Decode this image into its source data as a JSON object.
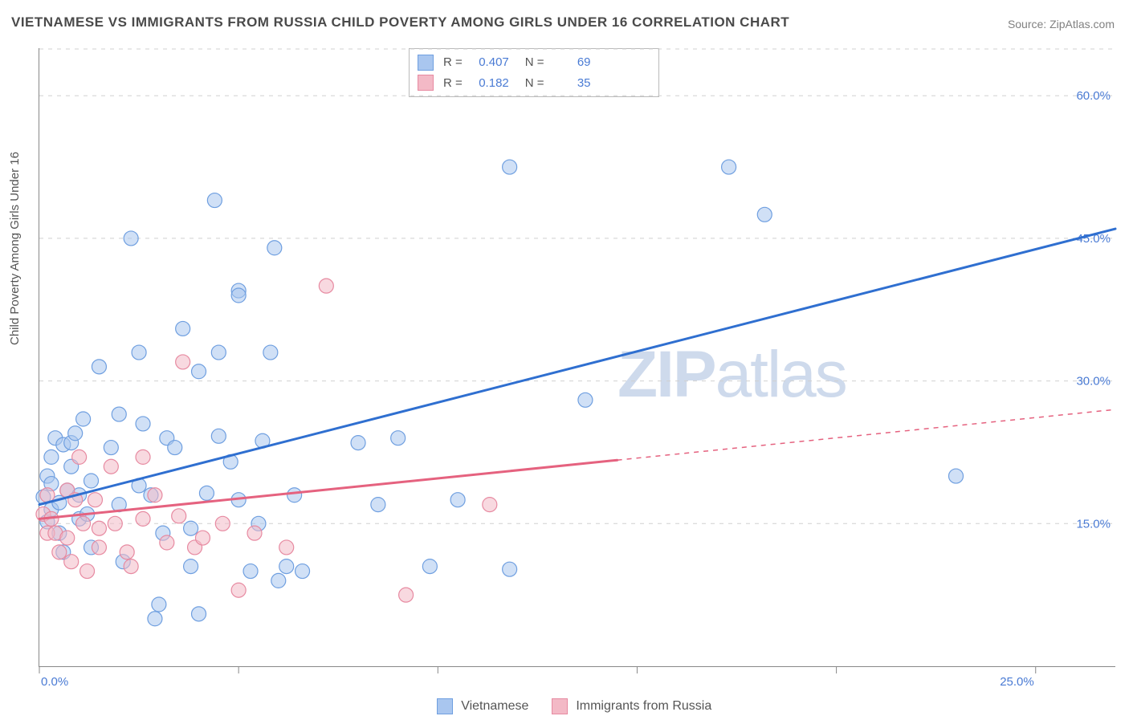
{
  "title": "VIETNAMESE VS IMMIGRANTS FROM RUSSIA CHILD POVERTY AMONG GIRLS UNDER 16 CORRELATION CHART",
  "source": "Source: ZipAtlas.com",
  "watermark_a": "ZIP",
  "watermark_b": "atlas",
  "chart": {
    "type": "scatter",
    "background_color": "#ffffff",
    "grid_color": "#d0d0d0",
    "axis_color": "#888888",
    "tick_label_color": "#4a7bd4",
    "ylabel": "Child Poverty Among Girls Under 16",
    "ylabel_fontsize": 15,
    "xlim": [
      0,
      27
    ],
    "ylim": [
      0,
      65
    ],
    "y_ticks": [
      15,
      30,
      45,
      60
    ],
    "y_tick_labels": [
      "15.0%",
      "30.0%",
      "45.0%",
      "60.0%"
    ],
    "x_ticks": [
      0,
      5,
      10,
      15,
      20,
      25
    ],
    "x_tick_labels": [
      "0.0%",
      "",
      "",
      "",
      "",
      "25.0%"
    ],
    "marker_radius": 9,
    "marker_opacity": 0.55,
    "line_width": 3,
    "series": [
      {
        "name": "Vietnamese",
        "color_fill": "#a9c6ef",
        "color_stroke": "#6f9fe0",
        "line_color": "#2f6fd0",
        "R": "0.407",
        "N": "69",
        "trend": {
          "x1": 0,
          "y1": 17,
          "x2": 27,
          "y2": 46,
          "solid_until_x": 27
        },
        "points": [
          [
            0.1,
            17.8
          ],
          [
            0.2,
            15.2
          ],
          [
            0.2,
            20.0
          ],
          [
            0.3,
            16.5
          ],
          [
            0.3,
            22.0
          ],
          [
            0.3,
            19.2
          ],
          [
            0.4,
            24.0
          ],
          [
            0.5,
            14.0
          ],
          [
            0.5,
            17.2
          ],
          [
            0.6,
            12.0
          ],
          [
            0.6,
            23.3
          ],
          [
            0.7,
            18.5
          ],
          [
            0.8,
            21.0
          ],
          [
            0.8,
            23.5
          ],
          [
            0.9,
            24.5
          ],
          [
            1.0,
            15.5
          ],
          [
            1.0,
            18.0
          ],
          [
            1.1,
            26.0
          ],
          [
            1.2,
            16.0
          ],
          [
            1.3,
            19.5
          ],
          [
            1.3,
            12.5
          ],
          [
            1.5,
            31.5
          ],
          [
            1.8,
            23.0
          ],
          [
            2.0,
            26.5
          ],
          [
            2.0,
            17.0
          ],
          [
            2.1,
            11.0
          ],
          [
            2.3,
            45.0
          ],
          [
            2.5,
            19.0
          ],
          [
            2.5,
            33.0
          ],
          [
            2.6,
            25.5
          ],
          [
            2.8,
            18.0
          ],
          [
            2.9,
            5.0
          ],
          [
            3.0,
            6.5
          ],
          [
            3.1,
            14.0
          ],
          [
            3.2,
            24.0
          ],
          [
            3.4,
            23.0
          ],
          [
            3.6,
            35.5
          ],
          [
            3.8,
            10.5
          ],
          [
            3.8,
            14.5
          ],
          [
            4.0,
            31.0
          ],
          [
            4.0,
            5.5
          ],
          [
            4.2,
            18.2
          ],
          [
            4.4,
            49.0
          ],
          [
            4.5,
            33.0
          ],
          [
            4.5,
            24.2
          ],
          [
            4.8,
            21.5
          ],
          [
            5.0,
            17.5
          ],
          [
            5.0,
            39.5
          ],
          [
            5.0,
            39.0
          ],
          [
            5.3,
            10.0
          ],
          [
            5.5,
            15.0
          ],
          [
            5.6,
            23.7
          ],
          [
            5.8,
            33.0
          ],
          [
            5.9,
            44.0
          ],
          [
            6.0,
            9.0
          ],
          [
            6.2,
            10.5
          ],
          [
            6.4,
            18.0
          ],
          [
            6.6,
            10.0
          ],
          [
            8.0,
            23.5
          ],
          [
            8.5,
            17.0
          ],
          [
            9.0,
            24.0
          ],
          [
            9.8,
            10.5
          ],
          [
            10.5,
            17.5
          ],
          [
            11.8,
            52.5
          ],
          [
            11.8,
            10.2
          ],
          [
            13.7,
            28.0
          ],
          [
            17.3,
            52.5
          ],
          [
            18.2,
            47.5
          ],
          [
            23.0,
            20.0
          ]
        ]
      },
      {
        "name": "Immigrants from Russia",
        "color_fill": "#f3b9c6",
        "color_stroke": "#e78aa1",
        "line_color": "#e5627f",
        "R": "0.182",
        "N": "35",
        "trend": {
          "x1": 0,
          "y1": 15.5,
          "x2": 27,
          "y2": 27,
          "solid_until_x": 14.5
        },
        "points": [
          [
            0.1,
            16.0
          ],
          [
            0.2,
            18.0
          ],
          [
            0.2,
            14.0
          ],
          [
            0.3,
            15.5
          ],
          [
            0.4,
            14.0
          ],
          [
            0.5,
            12.0
          ],
          [
            0.7,
            18.5
          ],
          [
            0.7,
            13.5
          ],
          [
            0.8,
            11.0
          ],
          [
            0.9,
            17.5
          ],
          [
            1.0,
            22.0
          ],
          [
            1.1,
            15.0
          ],
          [
            1.2,
            10.0
          ],
          [
            1.4,
            17.5
          ],
          [
            1.5,
            14.5
          ],
          [
            1.5,
            12.5
          ],
          [
            1.8,
            21.0
          ],
          [
            1.9,
            15.0
          ],
          [
            2.2,
            12.0
          ],
          [
            2.3,
            10.5
          ],
          [
            2.6,
            22.0
          ],
          [
            2.6,
            15.5
          ],
          [
            2.9,
            18.0
          ],
          [
            3.2,
            13.0
          ],
          [
            3.5,
            15.8
          ],
          [
            3.6,
            32.0
          ],
          [
            3.9,
            12.5
          ],
          [
            4.1,
            13.5
          ],
          [
            4.6,
            15.0
          ],
          [
            5.0,
            8.0
          ],
          [
            5.4,
            14.0
          ],
          [
            6.2,
            12.5
          ],
          [
            7.2,
            40.0
          ],
          [
            9.2,
            7.5
          ],
          [
            11.3,
            17.0
          ]
        ]
      }
    ]
  },
  "legend_bottom": {
    "items": [
      {
        "label": "Vietnamese",
        "fill": "#a9c6ef",
        "stroke": "#6f9fe0"
      },
      {
        "label": "Immigrants from Russia",
        "fill": "#f3b9c6",
        "stroke": "#e78aa1"
      }
    ]
  }
}
